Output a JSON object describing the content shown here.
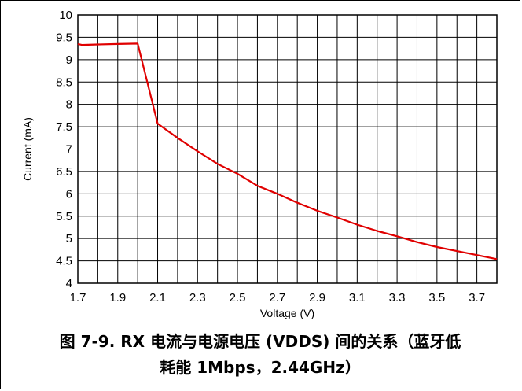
{
  "caption": {
    "line1": "图 7-9. RX 电流与电源电压 (VDDS) 间的关系（蓝牙低",
    "line2": "耗能 1Mbps，2.44GHz）"
  },
  "chart_data": {
    "type": "line",
    "title": "",
    "xlabel": "Voltage (V)",
    "ylabel": "Current (mA)",
    "xlim": [
      1.7,
      3.8
    ],
    "ylim": [
      4,
      10
    ],
    "x_ticks": [
      1.7,
      1.8,
      1.9,
      2.0,
      2.1,
      2.2,
      2.3,
      2.4,
      2.5,
      2.6,
      2.7,
      2.8,
      2.9,
      3.0,
      3.1,
      3.2,
      3.3,
      3.4,
      3.5,
      3.6,
      3.7,
      3.8
    ],
    "x_tick_labels": [
      "1.7",
      "1.9",
      "2.1",
      "2.3",
      "2.5",
      "2.7",
      "2.9",
      "3.1",
      "3.3",
      "3.5",
      "3.7"
    ],
    "x_tick_label_values": [
      1.7,
      1.9,
      2.1,
      2.3,
      2.5,
      2.7,
      2.9,
      3.1,
      3.3,
      3.5,
      3.7
    ],
    "y_ticks": [
      4,
      4.5,
      5,
      5.5,
      6,
      6.5,
      7,
      7.5,
      8,
      8.5,
      9,
      9.5,
      10
    ],
    "y_tick_labels": [
      "4",
      "4.5",
      "5",
      "5.5",
      "6",
      "6.5",
      "7",
      "7.5",
      "8",
      "8.5",
      "9",
      "9.5",
      "10"
    ],
    "grid": true,
    "line_color": "#e00000",
    "series": [
      {
        "x": [
          1.7,
          1.72,
          1.8,
          1.9,
          2.0,
          2.1,
          2.2,
          2.3,
          2.4,
          2.5,
          2.6,
          2.7,
          2.8,
          2.9,
          3.0,
          3.1,
          3.2,
          3.3,
          3.4,
          3.5,
          3.6,
          3.7,
          3.8
        ],
        "values": [
          9.35,
          9.33,
          9.34,
          9.35,
          9.36,
          7.57,
          7.25,
          6.95,
          6.67,
          6.45,
          6.18,
          6.0,
          5.8,
          5.62,
          5.47,
          5.31,
          5.17,
          5.05,
          4.92,
          4.81,
          4.72,
          4.63,
          4.54
        ]
      }
    ]
  }
}
